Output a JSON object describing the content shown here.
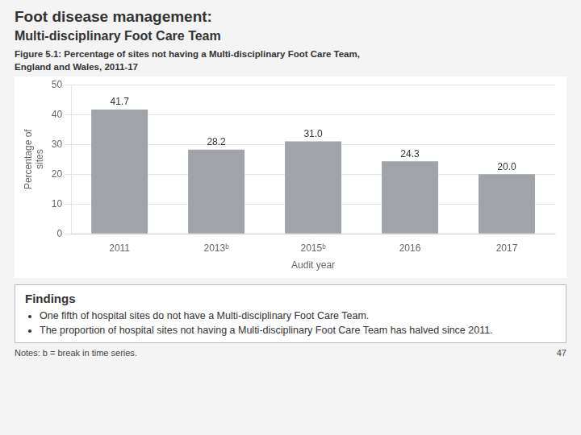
{
  "chart_data": {
    "type": "bar",
    "title": "Foot disease management:",
    "subtitle": "Multi-disciplinary Foot Care Team",
    "annotations": [
      "Figure 5.1: Percentage of sites not having a Multi-disciplinary Foot Care Team,",
      "England and Wales, 2011-17",
      "Findings",
      "One fifth of hospital sites do not have a Multi-disciplinary Foot Care Team.",
      "The proportion of hospital sites not having a Multi-disciplinary Foot Care Team has halved since 2011.",
      "Notes: b = break in time series.",
      "47"
    ],
    "categories": [
      "2011",
      "2013ᵇ",
      "2015ᵇ",
      "2016",
      "2017"
    ],
    "values": [
      41.7,
      28.2,
      31.0,
      24.3,
      20.0
    ],
    "value_labels": [
      "41.7",
      "28.2",
      "31.0",
      "24.3",
      "20.0"
    ],
    "data_labels": true,
    "color": "#a0a4a8",
    "xlabel": "Audit year",
    "ylabel": "Percentage of\nsites",
    "ylim": [
      0,
      50
    ],
    "yticks": [
      0,
      10,
      20,
      30,
      40,
      50
    ],
    "grid": true
  }
}
